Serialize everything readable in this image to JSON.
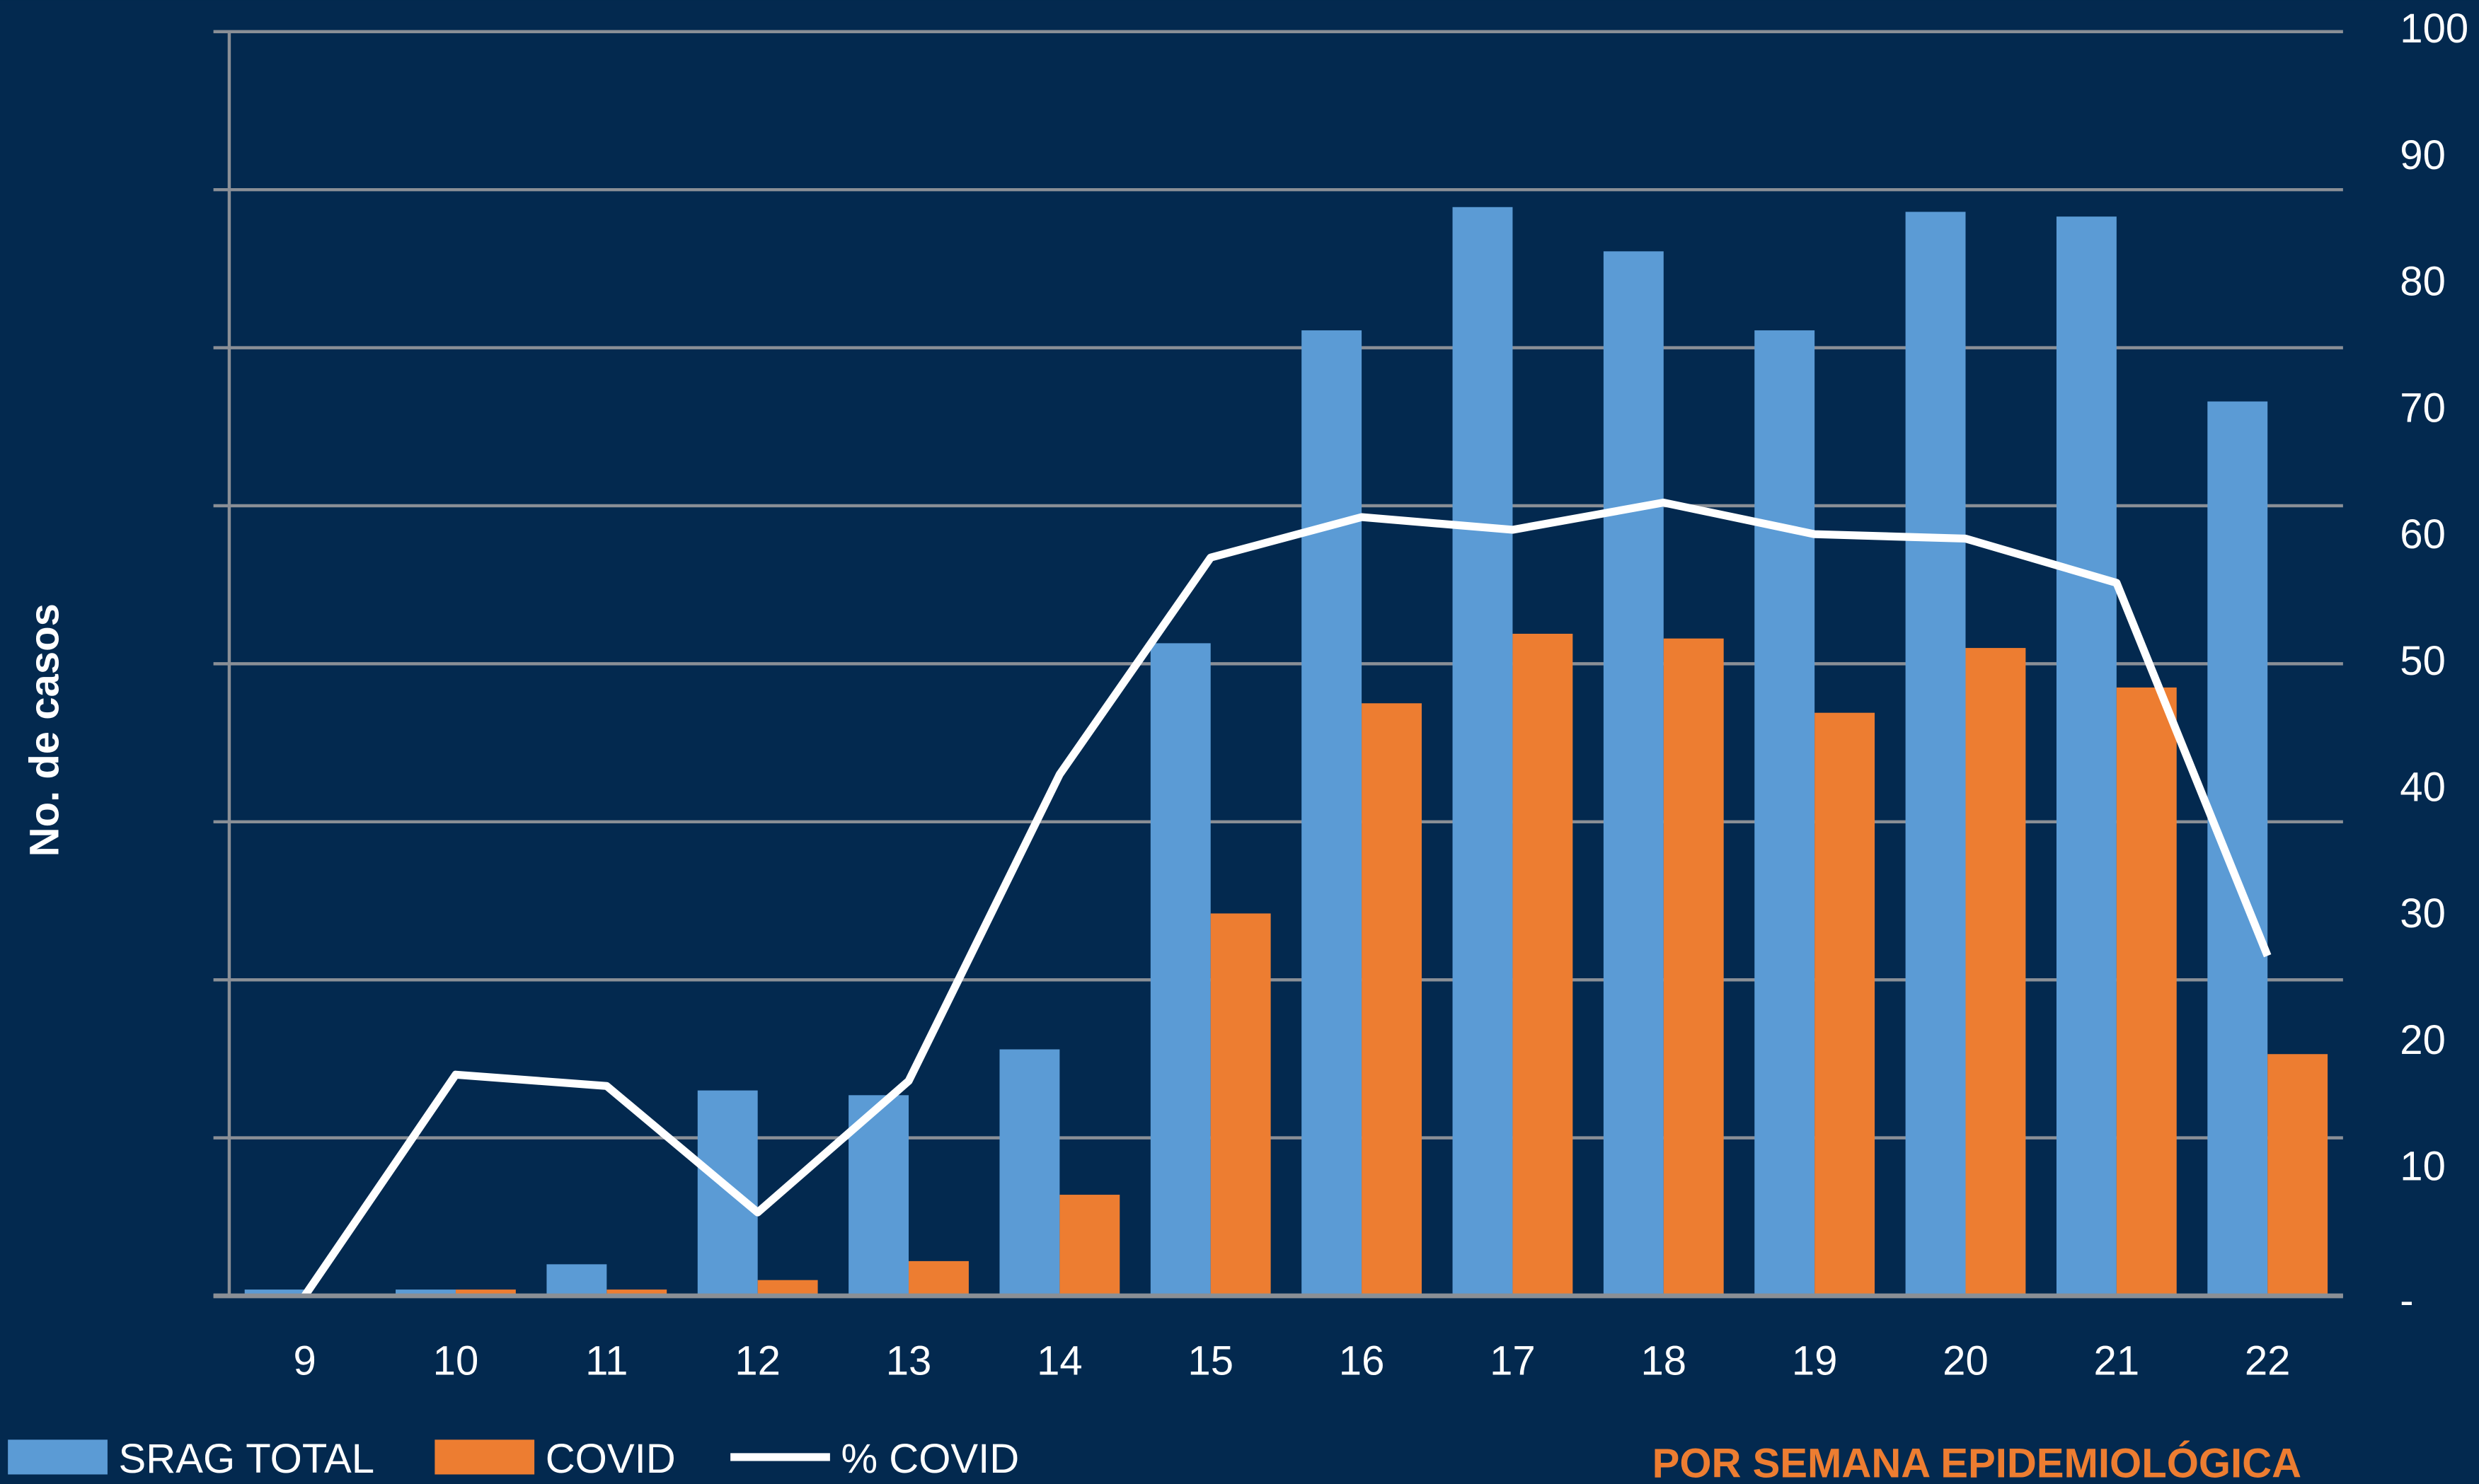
{
  "chart_data": {
    "type": "bar",
    "y_label": "No. de casos",
    "note": "POR SEMANA EPIDEMIOLÓGICA",
    "categories": [
      "9",
      "10",
      "11",
      "12",
      "13",
      "14",
      "15",
      "16",
      "17",
      "18",
      "19",
      "20",
      "21",
      "22"
    ],
    "series": [
      {
        "name": "SRAG TOTAL",
        "color": "#5b9bd5",
        "values": [
          0.4,
          0.4,
          2,
          13,
          12.7,
          15.6,
          41.3,
          61.1,
          68.9,
          66.1,
          61.1,
          68.6,
          68.3,
          56.6
        ]
      },
      {
        "name": "COVID",
        "color": "#ed7d31",
        "values": [
          0,
          0.4,
          0.4,
          1,
          2.2,
          6.4,
          24.2,
          37.5,
          41.9,
          41.6,
          36.9,
          41,
          38.5,
          15.3
        ]
      },
      {
        "name": "% COVID",
        "color": "#ffffff",
        "axis": "y2",
        "type": "line",
        "values": [
          0,
          17.5,
          16.6,
          6.6,
          17,
          41.25,
          58.4,
          61.6,
          60.6,
          62.75,
          60.25,
          59.9,
          56.4,
          26.9
        ]
      }
    ],
    "ylim": [
      0,
      80
    ],
    "yticks": [
      0,
      10,
      20,
      30,
      40,
      50,
      60,
      70,
      80
    ],
    "y2lim": [
      0,
      100
    ],
    "y2ticks": [
      {
        "value": 0,
        "label": "-"
      },
      10,
      20,
      30,
      40,
      50,
      60,
      70,
      80,
      90,
      100
    ],
    "grid": true
  }
}
